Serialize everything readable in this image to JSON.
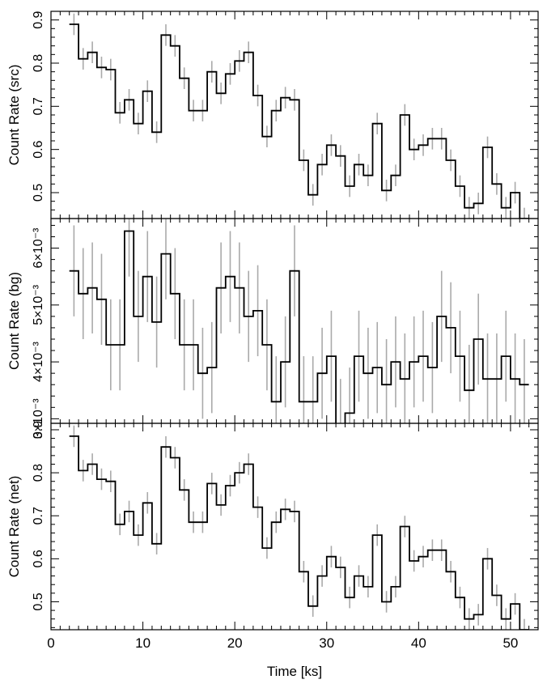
{
  "chart_data": [
    {
      "type": "line",
      "ylabel": "Count Rate (src)",
      "ylim": [
        0.44,
        0.92
      ],
      "yticks": [
        {
          "value": 0.5,
          "label": "0.5"
        },
        {
          "value": 0.6,
          "label": "0.6"
        },
        {
          "value": 0.7,
          "label": "0.7"
        },
        {
          "value": 0.8,
          "label": "0.8"
        },
        {
          "value": 0.9,
          "label": "0.9"
        }
      ],
      "x": [
        2.5,
        3.5,
        4.5,
        5.5,
        6.5,
        7.5,
        8.5,
        9.5,
        10.5,
        11.5,
        12.5,
        13.5,
        14.5,
        15.5,
        16.5,
        17.5,
        18.5,
        19.5,
        20.5,
        21.5,
        22.5,
        23.5,
        24.5,
        25.5,
        26.5,
        27.5,
        28.5,
        29.5,
        30.5,
        31.5,
        32.5,
        33.5,
        34.5,
        35.5,
        36.5,
        37.5,
        38.5,
        39.5,
        40.5,
        41.5,
        42.5,
        43.5,
        44.5,
        45.5,
        46.5,
        47.5,
        48.5,
        49.5,
        50.5,
        51.5
      ],
      "values": [
        0.89,
        0.81,
        0.825,
        0.79,
        0.785,
        0.685,
        0.715,
        0.66,
        0.735,
        0.64,
        0.865,
        0.84,
        0.765,
        0.69,
        0.69,
        0.78,
        0.73,
        0.775,
        0.805,
        0.825,
        0.725,
        0.63,
        0.69,
        0.72,
        0.715,
        0.575,
        0.495,
        0.565,
        0.61,
        0.585,
        0.515,
        0.565,
        0.54,
        0.66,
        0.505,
        0.54,
        0.68,
        0.6,
        0.61,
        0.625,
        0.625,
        0.575,
        0.515,
        0.465,
        0.475,
        0.605,
        0.52,
        0.465,
        0.5,
        0.44
      ],
      "errors": 0.025,
      "grid": false
    },
    {
      "type": "line",
      "ylabel": "Count Rate (bg)",
      "ylim": [
        0.00292,
        0.00652
      ],
      "yticks": [
        {
          "value": 0.003,
          "label": "3×10⁻³"
        },
        {
          "value": 0.004,
          "label": "4×10⁻³"
        },
        {
          "value": 0.005,
          "label": "5×10⁻³"
        },
        {
          "value": 0.006,
          "label": "6×10⁻³"
        }
      ],
      "x": [
        2.5,
        3.5,
        4.5,
        5.5,
        6.5,
        7.5,
        8.5,
        9.5,
        10.5,
        11.5,
        12.5,
        13.5,
        14.5,
        15.5,
        16.5,
        17.5,
        18.5,
        19.5,
        20.5,
        21.5,
        22.5,
        23.5,
        24.5,
        25.5,
        26.5,
        27.5,
        28.5,
        29.5,
        30.5,
        31.5,
        32.5,
        33.5,
        34.5,
        35.5,
        36.5,
        37.5,
        38.5,
        39.5,
        40.5,
        41.5,
        42.5,
        43.5,
        44.5,
        45.5,
        46.5,
        47.5,
        48.5,
        49.5,
        50.5,
        51.5
      ],
      "values": [
        0.0056,
        0.0052,
        0.0053,
        0.0051,
        0.0043,
        0.0043,
        0.0063,
        0.0048,
        0.0055,
        0.0047,
        0.0059,
        0.0052,
        0.0043,
        0.0043,
        0.0038,
        0.0039,
        0.0053,
        0.0055,
        0.0053,
        0.0048,
        0.0049,
        0.0043,
        0.0033,
        0.004,
        0.0056,
        0.0033,
        0.0033,
        0.0038,
        0.0041,
        0.0029,
        0.0031,
        0.0041,
        0.0038,
        0.0039,
        0.0036,
        0.004,
        0.0037,
        0.004,
        0.0041,
        0.0039,
        0.0048,
        0.0046,
        0.0041,
        0.0035,
        0.0044,
        0.0037,
        0.0037,
        0.0041,
        0.0037,
        0.0036
      ],
      "errors": 0.0008,
      "grid": false
    },
    {
      "type": "line",
      "ylabel": "Count Rate (net)",
      "ylim": [
        0.435,
        0.915
      ],
      "yticks": [
        {
          "value": 0.5,
          "label": "0.5"
        },
        {
          "value": 0.6,
          "label": "0.6"
        },
        {
          "value": 0.7,
          "label": "0.7"
        },
        {
          "value": 0.8,
          "label": "0.8"
        },
        {
          "value": 0.9,
          "label": "0.9"
        }
      ],
      "x": [
        2.5,
        3.5,
        4.5,
        5.5,
        6.5,
        7.5,
        8.5,
        9.5,
        10.5,
        11.5,
        12.5,
        13.5,
        14.5,
        15.5,
        16.5,
        17.5,
        18.5,
        19.5,
        20.5,
        21.5,
        22.5,
        23.5,
        24.5,
        25.5,
        26.5,
        27.5,
        28.5,
        29.5,
        30.5,
        31.5,
        32.5,
        33.5,
        34.5,
        35.5,
        36.5,
        37.5,
        38.5,
        39.5,
        40.5,
        41.5,
        42.5,
        43.5,
        44.5,
        45.5,
        46.5,
        47.5,
        48.5,
        49.5,
        50.5,
        51.5
      ],
      "values": [
        0.885,
        0.805,
        0.82,
        0.785,
        0.78,
        0.68,
        0.71,
        0.655,
        0.73,
        0.635,
        0.86,
        0.835,
        0.76,
        0.685,
        0.685,
        0.775,
        0.725,
        0.77,
        0.8,
        0.82,
        0.72,
        0.625,
        0.685,
        0.715,
        0.71,
        0.57,
        0.49,
        0.56,
        0.605,
        0.58,
        0.51,
        0.56,
        0.535,
        0.655,
        0.5,
        0.535,
        0.675,
        0.595,
        0.605,
        0.62,
        0.62,
        0.57,
        0.51,
        0.46,
        0.47,
        0.6,
        0.515,
        0.46,
        0.495,
        0.435
      ],
      "errors": 0.025,
      "grid": false
    }
  ],
  "xaxis": {
    "label": "Time [ks]",
    "xlim": [
      0,
      53
    ],
    "ticks": [
      {
        "value": 0,
        "label": "0"
      },
      {
        "value": 10,
        "label": "10"
      },
      {
        "value": 20,
        "label": "20"
      },
      {
        "value": 30,
        "label": "30"
      },
      {
        "value": 40,
        "label": "40"
      },
      {
        "value": 50,
        "label": "50"
      }
    ]
  },
  "colors": {
    "line": "#000000",
    "errorbar": "#aaaaaa",
    "frame": "#000000"
  }
}
